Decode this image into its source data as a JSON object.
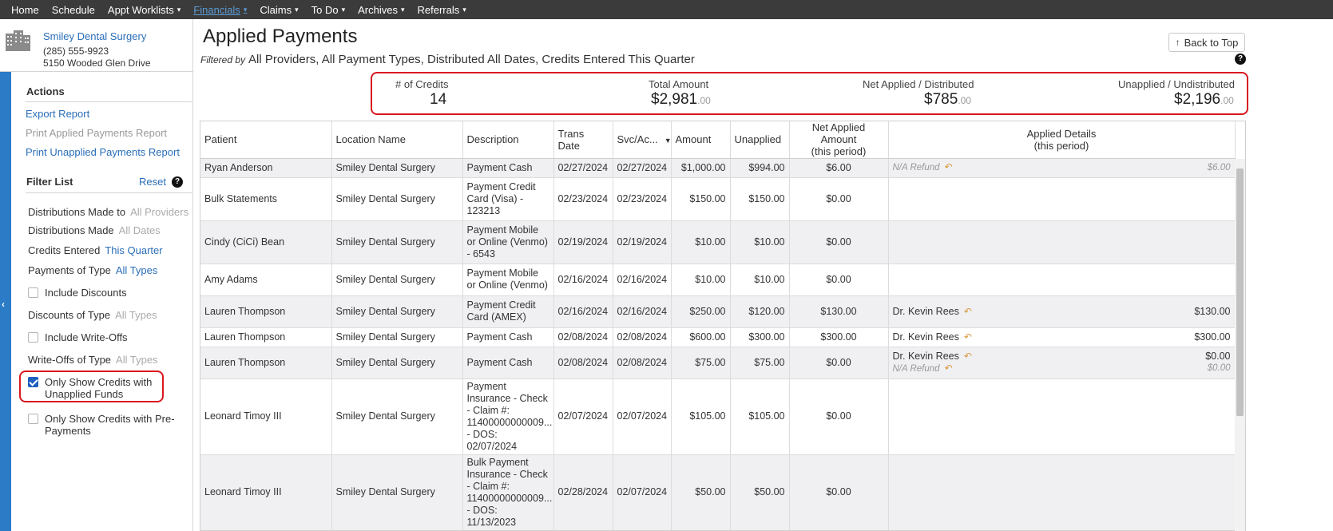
{
  "nav": {
    "items": [
      {
        "label": "Home",
        "caret": false,
        "active": false
      },
      {
        "label": "Schedule",
        "caret": false,
        "active": false
      },
      {
        "label": "Appt Worklists",
        "caret": true,
        "active": false
      },
      {
        "label": "Financials",
        "caret": true,
        "active": true
      },
      {
        "label": "Claims",
        "caret": true,
        "active": false
      },
      {
        "label": "To Do",
        "caret": true,
        "active": false
      },
      {
        "label": "Archives",
        "caret": true,
        "active": false
      },
      {
        "label": "Referrals",
        "caret": true,
        "active": false
      }
    ]
  },
  "practice": {
    "name": "Smiley Dental Surgery",
    "phone": "(285) 555-9923",
    "address": "5150 Wooded Glen Drive"
  },
  "actions": {
    "heading": "Actions",
    "export": "Export Report",
    "print_applied": "Print Applied Payments Report",
    "print_unapplied": "Print Unapplied Payments Report"
  },
  "filters": {
    "heading": "Filter List",
    "reset": "Reset",
    "help": "?",
    "distributions_to_label": "Distributions Made to",
    "distributions_to_value": "All Providers",
    "distributions_made_label": "Distributions Made",
    "distributions_made_value": "All Dates",
    "credits_entered_label": "Credits Entered",
    "credits_entered_value": "This Quarter",
    "payments_type_label": "Payments of Type",
    "payments_type_value": "All Types",
    "include_discounts": "Include Discounts",
    "discounts_type_label": "Discounts of Type",
    "discounts_type_value": "All Types",
    "include_writeoffs": "Include Write-Offs",
    "writeoffs_type_label": "Write-Offs of Type",
    "writeoffs_type_value": "All Types",
    "only_unapplied": "Only Show Credits with Unapplied Funds",
    "only_unapplied_checked": true,
    "only_prepayments": "Only Show Credits with Pre-Payments",
    "only_prepayments_checked": false
  },
  "header": {
    "title": "Applied Payments",
    "filtered_by_label": "Filtered by",
    "filtered_by_text": "All Providers, All Payment Types, Distributed All Dates, Credits Entered This Quarter",
    "back_to_top": "Back to Top",
    "help": "?"
  },
  "summary": {
    "credits_label": "# of Credits",
    "credits_value": "14",
    "total_label": "Total Amount",
    "total_value": "$2,981",
    "total_cents": ".00",
    "net_label": "Net Applied / Distributed",
    "net_value": "$785",
    "net_cents": ".00",
    "unapplied_label": "Unapplied / Undistributed",
    "unapplied_value": "$2,196",
    "unapplied_cents": ".00"
  },
  "table": {
    "columns": {
      "patient": "Patient",
      "location": "Location Name",
      "description": "Description",
      "trans_date": "Trans Date",
      "svc": "Svc/Ac...",
      "amount": "Amount",
      "unapplied": "Unapplied",
      "net_applied_1": "Net Applied Amount",
      "net_applied_2": "(this period)",
      "applied_details_1": "Applied Details",
      "applied_details_2": "(this period)"
    },
    "rows": [
      {
        "patient": "Ryan Anderson",
        "location": "Smiley Dental Surgery",
        "description": "Payment Cash",
        "trans": "02/27/2024",
        "svc": "02/27/2024",
        "amount": "$1,000.00",
        "unapplied": "$994.00",
        "net": "$6.00",
        "details": [
          {
            "who": "N/A Refund",
            "amount": "$6.00",
            "na": true
          }
        ]
      },
      {
        "patient": "Bulk Statements",
        "location": "Smiley Dental Surgery",
        "description": "Payment Credit Card (Visa) - 123213",
        "trans": "02/23/2024",
        "svc": "02/23/2024",
        "amount": "$150.00",
        "unapplied": "$150.00",
        "net": "$0.00",
        "details": []
      },
      {
        "patient": "Cindy (CiCi) Bean",
        "location": "Smiley Dental Surgery",
        "description": "Payment Mobile or Online (Venmo) - 6543",
        "trans": "02/19/2024",
        "svc": "02/19/2024",
        "amount": "$10.00",
        "unapplied": "$10.00",
        "net": "$0.00",
        "details": []
      },
      {
        "patient": "Amy Adams",
        "location": "Smiley Dental Surgery",
        "description": "Payment Mobile or Online (Venmo)",
        "trans": "02/16/2024",
        "svc": "02/16/2024",
        "amount": "$10.00",
        "unapplied": "$10.00",
        "net": "$0.00",
        "details": []
      },
      {
        "patient": "Lauren Thompson",
        "location": "Smiley Dental Surgery",
        "description": "Payment Credit Card (AMEX)",
        "trans": "02/16/2024",
        "svc": "02/16/2024",
        "amount": "$250.00",
        "unapplied": "$120.00",
        "net": "$130.00",
        "details": [
          {
            "who": "Dr. Kevin Rees",
            "amount": "$130.00",
            "na": false
          }
        ]
      },
      {
        "patient": "Lauren Thompson",
        "location": "Smiley Dental Surgery",
        "description": "Payment Cash",
        "trans": "02/08/2024",
        "svc": "02/08/2024",
        "amount": "$600.00",
        "unapplied": "$300.00",
        "net": "$300.00",
        "details": [
          {
            "who": "Dr. Kevin Rees",
            "amount": "$300.00",
            "na": false
          }
        ]
      },
      {
        "patient": "Lauren Thompson",
        "location": "Smiley Dental Surgery",
        "description": "Payment Cash",
        "trans": "02/08/2024",
        "svc": "02/08/2024",
        "amount": "$75.00",
        "unapplied": "$75.00",
        "net": "$0.00",
        "details": [
          {
            "who": "Dr. Kevin Rees",
            "amount": "$0.00",
            "na": false
          },
          {
            "who": "N/A Refund",
            "amount": "$0.00",
            "na": true
          }
        ]
      },
      {
        "patient": "Leonard Timoy III",
        "location": "Smiley Dental Surgery",
        "description": "Payment Insurance - Check - Claim #: 11400000000009... - DOS: 02/07/2024",
        "trans": "02/07/2024",
        "svc": "02/07/2024",
        "amount": "$105.00",
        "unapplied": "$105.00",
        "net": "$0.00",
        "details": []
      },
      {
        "patient": "Leonard Timoy III",
        "location": "Smiley Dental Surgery",
        "description": "Bulk Payment Insurance - Check - Claim #: 11400000000009... - DOS: 11/13/2023",
        "trans": "02/28/2024",
        "svc": "02/07/2024",
        "amount": "$50.00",
        "unapplied": "$50.00",
        "net": "$0.00",
        "details": []
      }
    ]
  }
}
